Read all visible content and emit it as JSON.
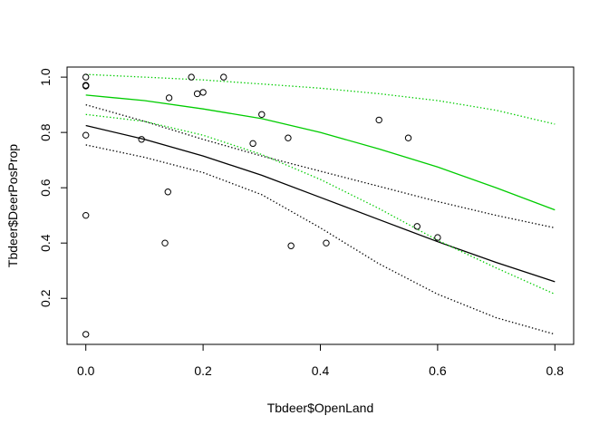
{
  "chart_data": {
    "type": "scatter",
    "title": "",
    "xlabel": "Tbdeer$OpenLand",
    "ylabel": "Tbdeer$DeerPosProp",
    "xlim": [
      -0.032,
      0.832
    ],
    "ylim": [
      0.0336,
      1.0364
    ],
    "xticks": [
      0.0,
      0.2,
      0.4,
      0.6,
      0.8
    ],
    "yticks": [
      0.2,
      0.4,
      0.6,
      0.8,
      1.0
    ],
    "xtick_labels": [
      "0.0",
      "0.2",
      "0.4",
      "0.6",
      "0.8"
    ],
    "ytick_labels": [
      "0.2",
      "0.4",
      "0.6",
      "0.8",
      "1.0"
    ],
    "grid": false,
    "points": {
      "x": [
        0.0,
        0.0,
        0.0,
        0.0,
        0.0,
        0.0,
        0.0,
        0.095,
        0.135,
        0.14,
        0.142,
        0.18,
        0.19,
        0.2,
        0.235,
        0.285,
        0.3,
        0.345,
        0.35,
        0.41,
        0.5,
        0.55,
        0.565,
        0.6
      ],
      "y": [
        1.0,
        0.97,
        0.968,
        0.79,
        0.5,
        0.07,
        0.97,
        0.775,
        0.4,
        0.585,
        0.925,
        1.0,
        0.94,
        0.945,
        1.0,
        0.76,
        0.865,
        0.78,
        0.39,
        0.4,
        0.845,
        0.78,
        0.46,
        0.42
      ],
      "marker": "open-circle",
      "color": "#000000"
    },
    "series": [
      {
        "color": "#000000",
        "style": "solid",
        "x": [
          0.0,
          0.1,
          0.2,
          0.3,
          0.4,
          0.5,
          0.6,
          0.7,
          0.8
        ],
        "y": [
          0.825,
          0.775,
          0.715,
          0.645,
          0.565,
          0.485,
          0.405,
          0.33,
          0.26
        ]
      },
      {
        "color": "#000000",
        "style": "dotted",
        "x": [
          0.0,
          0.1,
          0.2,
          0.3,
          0.4,
          0.5,
          0.6,
          0.7,
          0.8
        ],
        "y": [
          0.9,
          0.84,
          0.775,
          0.715,
          0.66,
          0.605,
          0.55,
          0.5,
          0.455
        ]
      },
      {
        "color": "#000000",
        "style": "dotted",
        "x": [
          0.0,
          0.1,
          0.2,
          0.3,
          0.4,
          0.5,
          0.6,
          0.7,
          0.8
        ],
        "y": [
          0.755,
          0.71,
          0.655,
          0.575,
          0.455,
          0.325,
          0.215,
          0.13,
          0.07
        ]
      },
      {
        "color": "#00cc00",
        "style": "solid",
        "x": [
          0.0,
          0.1,
          0.2,
          0.3,
          0.4,
          0.5,
          0.6,
          0.7,
          0.8
        ],
        "y": [
          0.935,
          0.915,
          0.885,
          0.85,
          0.8,
          0.74,
          0.675,
          0.6,
          0.52
        ]
      },
      {
        "color": "#00cc00",
        "style": "dotted",
        "x": [
          0.0,
          0.1,
          0.2,
          0.3,
          0.4,
          0.5,
          0.6,
          0.7,
          0.8
        ],
        "y": [
          1.01,
          1.0,
          0.99,
          0.975,
          0.96,
          0.94,
          0.915,
          0.88,
          0.83
        ]
      },
      {
        "color": "#00cc00",
        "style": "dotted",
        "x": [
          0.0,
          0.1,
          0.2,
          0.3,
          0.4,
          0.5,
          0.6,
          0.7,
          0.8
        ],
        "y": [
          0.865,
          0.84,
          0.79,
          0.72,
          0.63,
          0.525,
          0.41,
          0.31,
          0.215
        ]
      }
    ]
  }
}
